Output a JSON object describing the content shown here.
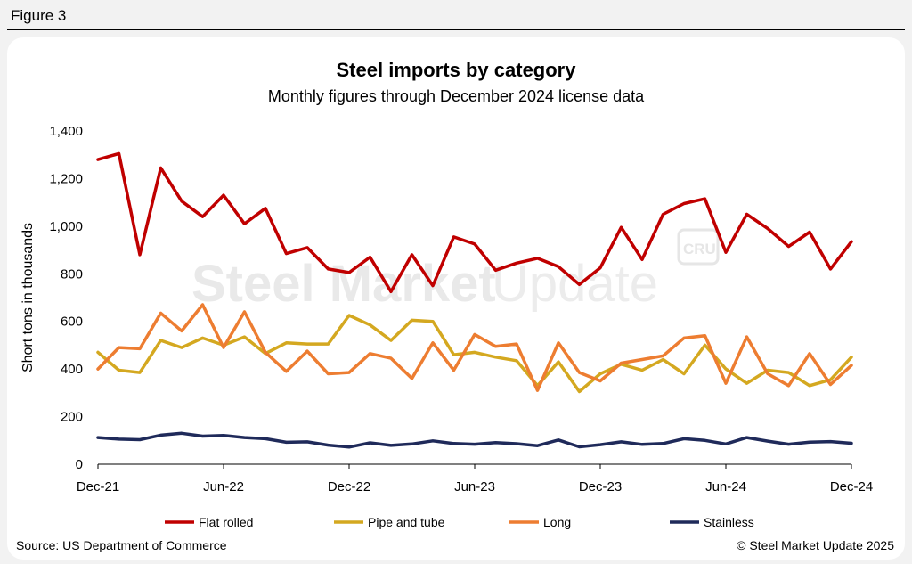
{
  "figure_label": "Figure 3",
  "source": "Source: US Department of Commerce",
  "copyright": "© Steel Market Update 2025",
  "watermark": {
    "brand_bold": "Steel Market",
    "brand_light": "Update",
    "badge": "CRU"
  },
  "chart_data": {
    "type": "line",
    "title": "Steel imports by category",
    "subtitle": "Monthly figures through December 2024 license data",
    "ylabel": "Short tons in thousands",
    "xlabel": "",
    "ylim": [
      0,
      1400
    ],
    "yticks": [
      0,
      200,
      400,
      600,
      800,
      1000,
      1200,
      1400
    ],
    "ytick_labels": [
      "0",
      "200",
      "400",
      "600",
      "800",
      "1,000",
      "1,200",
      "1,400"
    ],
    "x_tick_labels": [
      "Dec-21",
      "Jun-22",
      "Dec-22",
      "Jun-23",
      "Dec-23",
      "Jun-24",
      "Dec-24"
    ],
    "x": [
      "Dec-21",
      "Jan-22",
      "Feb-22",
      "Mar-22",
      "Apr-22",
      "May-22",
      "Jun-22",
      "Jul-22",
      "Aug-22",
      "Sep-22",
      "Oct-22",
      "Nov-22",
      "Dec-22",
      "Jan-23",
      "Feb-23",
      "Mar-23",
      "Apr-23",
      "May-23",
      "Jun-23",
      "Jul-23",
      "Aug-23",
      "Sep-23",
      "Oct-23",
      "Nov-23",
      "Dec-23",
      "Jan-24",
      "Feb-24",
      "Mar-24",
      "Apr-24",
      "May-24",
      "Jun-24",
      "Jul-24",
      "Aug-24",
      "Sep-24",
      "Oct-24",
      "Nov-24",
      "Dec-24"
    ],
    "legend_position": "bottom",
    "grid": false,
    "series": [
      {
        "name": "Flat rolled",
        "color": "#c00000",
        "values": [
          1280,
          1305,
          880,
          1245,
          1105,
          1040,
          1130,
          1010,
          1075,
          885,
          910,
          820,
          805,
          870,
          725,
          880,
          750,
          955,
          925,
          815,
          845,
          865,
          830,
          755,
          825,
          995,
          860,
          1050,
          1095,
          1115,
          890,
          1050,
          990,
          915,
          975,
          820,
          935
        ]
      },
      {
        "name": "Pipe and tube",
        "color": "#d4a820",
        "values": [
          470,
          395,
          385,
          520,
          490,
          530,
          500,
          535,
          465,
          510,
          505,
          505,
          625,
          585,
          520,
          605,
          600,
          460,
          470,
          450,
          435,
          330,
          430,
          305,
          380,
          420,
          395,
          440,
          380,
          500,
          400,
          340,
          395,
          385,
          330,
          355,
          450
        ]
      },
      {
        "name": "Long",
        "color": "#ed7d31",
        "values": [
          400,
          490,
          485,
          635,
          560,
          670,
          490,
          640,
          470,
          390,
          475,
          380,
          385,
          465,
          445,
          360,
          510,
          395,
          545,
          495,
          505,
          310,
          510,
          385,
          350,
          425,
          440,
          455,
          530,
          540,
          340,
          535,
          380,
          330,
          465,
          335,
          415
        ]
      },
      {
        "name": "Stainless",
        "color": "#1f2a5a",
        "values": [
          112,
          105,
          103,
          122,
          130,
          118,
          121,
          112,
          107,
          92,
          94,
          80,
          72,
          90,
          79,
          85,
          98,
          87,
          84,
          91,
          86,
          78,
          102,
          73,
          82,
          94,
          83,
          87,
          107,
          100,
          85,
          112,
          97,
          84,
          93,
          95,
          88
        ]
      }
    ]
  }
}
